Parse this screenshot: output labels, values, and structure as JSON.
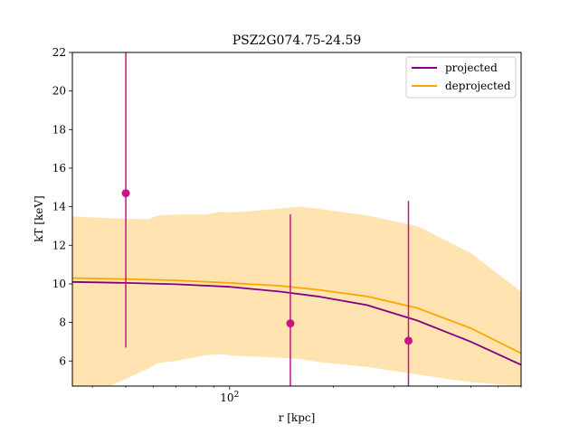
{
  "chart_data": {
    "type": "line",
    "title": "PSZ2G074.75-24.59",
    "xlabel": "r [kpc]",
    "ylabel": "kT [keV]",
    "x_scale": "log",
    "xlim": [
      35,
      700
    ],
    "ylim": [
      4.7,
      22
    ],
    "x_ticks": [
      {
        "value": 100,
        "label": "10²"
      }
    ],
    "y_ticks": [
      6,
      8,
      10,
      12,
      14,
      16,
      18,
      20,
      22
    ],
    "grid": false,
    "legend_position": "top-right",
    "series": [
      {
        "name": "projected",
        "color": "#800080",
        "x": [
          35,
          50,
          70,
          100,
          140,
          180,
          250,
          350,
          500,
          700
        ],
        "y": [
          10.1,
          10.05,
          9.98,
          9.85,
          9.6,
          9.35,
          8.9,
          8.1,
          7.0,
          5.8
        ]
      },
      {
        "name": "deprojected",
        "color": "#FFA500",
        "x": [
          35,
          50,
          70,
          100,
          140,
          180,
          250,
          350,
          500,
          700
        ],
        "y": [
          10.3,
          10.25,
          10.18,
          10.05,
          9.9,
          9.7,
          9.35,
          8.75,
          7.7,
          6.4
        ]
      }
    ],
    "band": {
      "series": "deprojected",
      "color": "#FFA500",
      "x": [
        35,
        45,
        58,
        62,
        70,
        85,
        95,
        100,
        110,
        130,
        160,
        180,
        250,
        350,
        500,
        700
      ],
      "upper": [
        13.5,
        13.4,
        13.35,
        13.55,
        13.6,
        13.6,
        13.75,
        13.7,
        13.75,
        13.85,
        14.0,
        13.9,
        13.55,
        13.0,
        11.6,
        9.6
      ],
      "lower": [
        4.7,
        4.7,
        5.6,
        5.9,
        6.0,
        6.3,
        6.35,
        6.3,
        6.25,
        6.2,
        6.1,
        5.95,
        5.7,
        5.3,
        4.9,
        4.7
      ]
    },
    "points": {
      "series": "projected",
      "color": "#C71585",
      "data": [
        {
          "x": 50,
          "y": 14.7,
          "ylow": 6.7,
          "yhigh": 22
        },
        {
          "x": 150,
          "y": 7.95,
          "ylow": 4.7,
          "yhigh": 13.6
        },
        {
          "x": 330,
          "y": 7.05,
          "ylow": 4.7,
          "yhigh": 14.3
        }
      ]
    }
  }
}
